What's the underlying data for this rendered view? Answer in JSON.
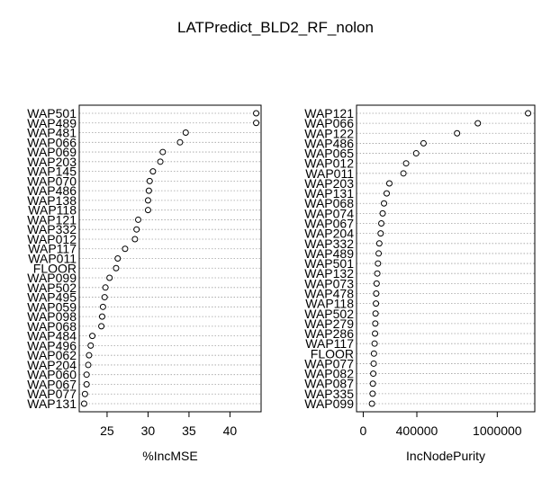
{
  "title": "LATPredict_BLD2_RF_nolon",
  "chart_data": [
    {
      "type": "scatter",
      "xlabel": "%IncMSE",
      "xticks": [
        25,
        30,
        35,
        40
      ],
      "xlim": [
        21.6,
        43.8
      ],
      "categories": [
        "WAP501",
        "WAP489",
        "WAP481",
        "WAP066",
        "WAP069",
        "WAP203",
        "WAP145",
        "WAP070",
        "WAP486",
        "WAP138",
        "WAP118",
        "WAP121",
        "WAP332",
        "WAP012",
        "WAP117",
        "WAP011",
        "FLOOR",
        "WAP099",
        "WAP502",
        "WAP495",
        "WAP059",
        "WAP098",
        "WAP068",
        "WAP484",
        "WAP496",
        "WAP062",
        "WAP204",
        "WAP060",
        "WAP067",
        "WAP077",
        "WAP131"
      ],
      "values": [
        43.2,
        43.2,
        34.6,
        33.9,
        31.8,
        31.5,
        30.6,
        30.2,
        30.1,
        30.0,
        30.0,
        28.8,
        28.6,
        28.4,
        27.2,
        26.3,
        26.1,
        25.3,
        24.8,
        24.7,
        24.5,
        24.4,
        24.3,
        23.2,
        23.0,
        22.8,
        22.7,
        22.5,
        22.5,
        22.3,
        22.2
      ]
    },
    {
      "type": "scatter",
      "xlabel": "IncNodePurity",
      "xticks": [
        0,
        400000,
        1000000
      ],
      "xtick_labels": [
        "0",
        "400000",
        "1000000"
      ],
      "xlim": [
        -50000,
        1280000
      ],
      "categories": [
        "WAP121",
        "WAP066",
        "WAP122",
        "WAP486",
        "WAP065",
        "WAP012",
        "WAP011",
        "WAP203",
        "WAP131",
        "WAP068",
        "WAP074",
        "WAP067",
        "WAP204",
        "WAP332",
        "WAP489",
        "WAP501",
        "WAP132",
        "WAP073",
        "WAP478",
        "WAP118",
        "WAP502",
        "WAP279",
        "WAP286",
        "WAP117",
        "FLOOR",
        "WAP077",
        "WAP082",
        "WAP087",
        "WAP335",
        "WAP099"
      ],
      "values": [
        1230000,
        855000,
        700000,
        450000,
        395000,
        320000,
        300000,
        195000,
        175000,
        155000,
        145000,
        135000,
        130000,
        120000,
        115000,
        110000,
        105000,
        100000,
        97000,
        95000,
        92000,
        90000,
        88000,
        85000,
        80000,
        78000,
        75000,
        72000,
        70000,
        65000
      ]
    }
  ]
}
